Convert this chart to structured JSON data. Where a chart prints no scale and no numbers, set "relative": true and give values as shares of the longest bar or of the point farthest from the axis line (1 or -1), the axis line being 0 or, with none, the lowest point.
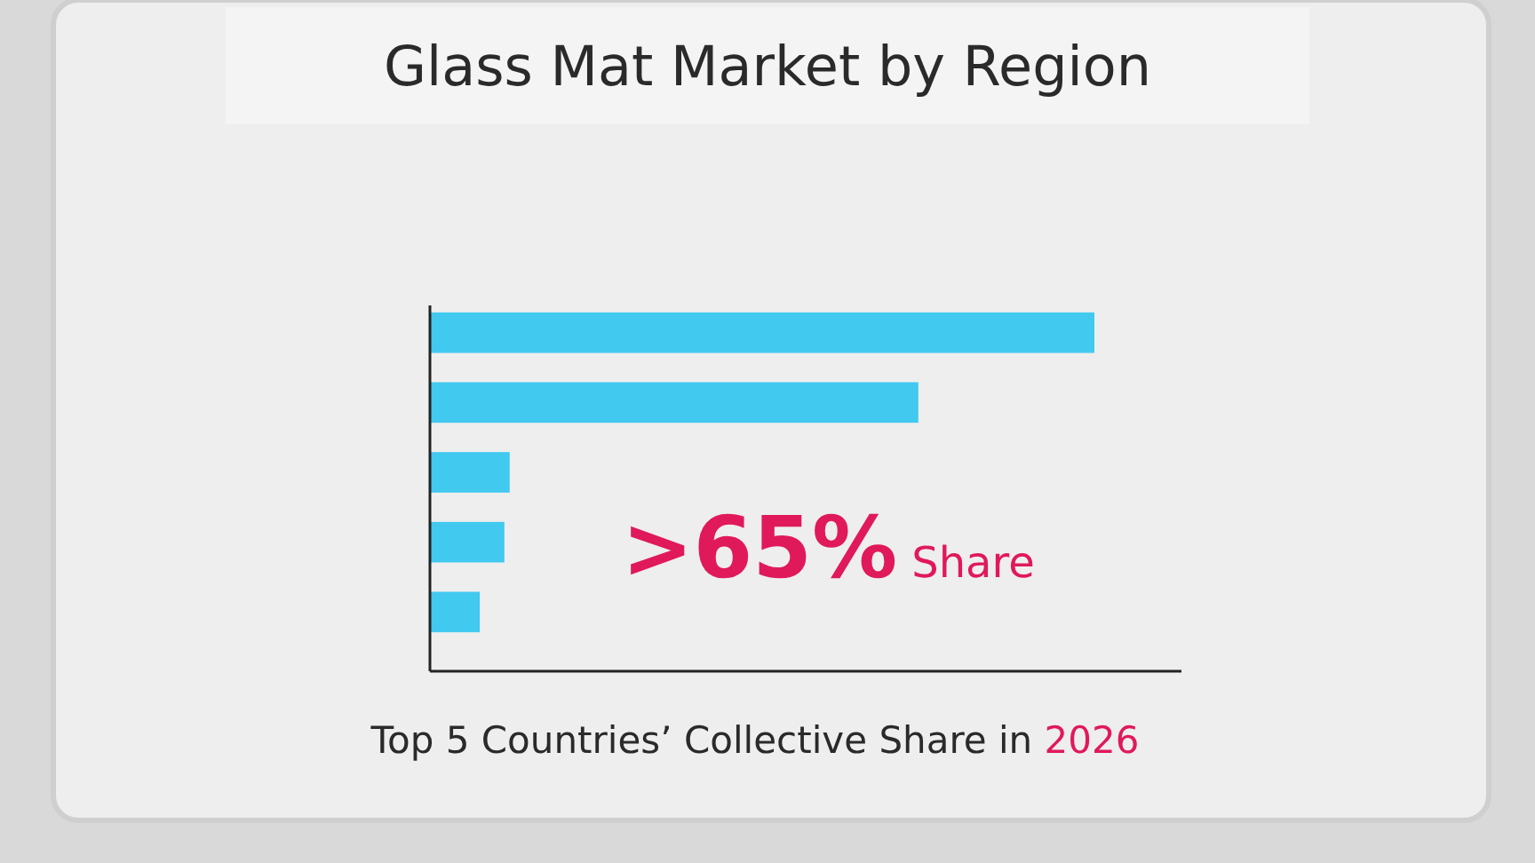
{
  "chart_data": {
    "type": "bar",
    "orientation": "horizontal",
    "relative": true,
    "title": "Glass Mat Market by Region",
    "subtitle": "Top 5 Countries’ Collective Share in 2026",
    "categories": [
      null,
      null,
      null,
      null,
      null
    ],
    "values": [
      1,
      0.735,
      0.12,
      0.112,
      0.075
    ],
    "color": "#41c9f0",
    "annotations": [
      ">65% Share"
    ]
  }
}
